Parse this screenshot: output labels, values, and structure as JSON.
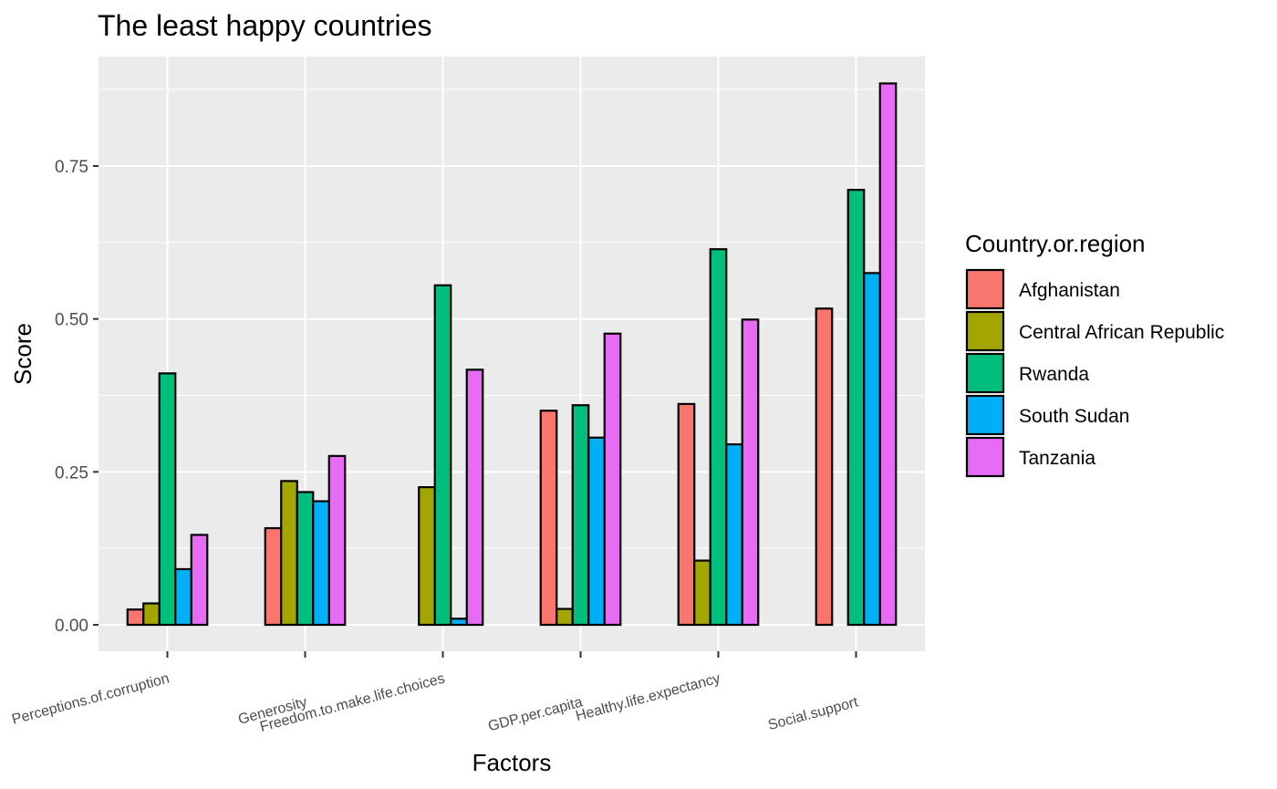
{
  "chart_data": {
    "type": "bar",
    "title": "The least happy countries",
    "xlabel": "Factors",
    "ylabel": "Score",
    "ylim": [
      -0.04,
      0.89
    ],
    "yticks": [
      0.0,
      0.25,
      0.5,
      0.75
    ],
    "ytick_labels": [
      "0.00",
      "0.25",
      "0.50",
      "0.75"
    ],
    "grid": true,
    "legend_title": "Country.or.region",
    "legend_position": "right",
    "categories": [
      "Perceptions.of.corruption",
      "Generosity",
      "Freedom.to.make.life.choices",
      "GDP.per.capita",
      "Healthy.life.expectancy",
      "Social.support"
    ],
    "series": [
      {
        "name": "Afghanistan",
        "color": "#F8766D",
        "values": [
          0.025,
          0.158,
          0.0,
          0.35,
          0.361,
          0.517
        ]
      },
      {
        "name": "Central African Republic",
        "color": "#A3A500",
        "values": [
          0.035,
          0.235,
          0.225,
          0.026,
          0.105,
          0.0
        ]
      },
      {
        "name": "Rwanda",
        "color": "#00BF7D",
        "values": [
          0.411,
          0.217,
          0.555,
          0.359,
          0.614,
          0.711
        ]
      },
      {
        "name": "South Sudan",
        "color": "#00B0F6",
        "values": [
          0.091,
          0.202,
          0.01,
          0.306,
          0.295,
          0.575
        ]
      },
      {
        "name": "Tanzania",
        "color": "#E76BF3",
        "values": [
          0.147,
          0.276,
          0.417,
          0.476,
          0.499,
          0.885
        ]
      }
    ]
  }
}
